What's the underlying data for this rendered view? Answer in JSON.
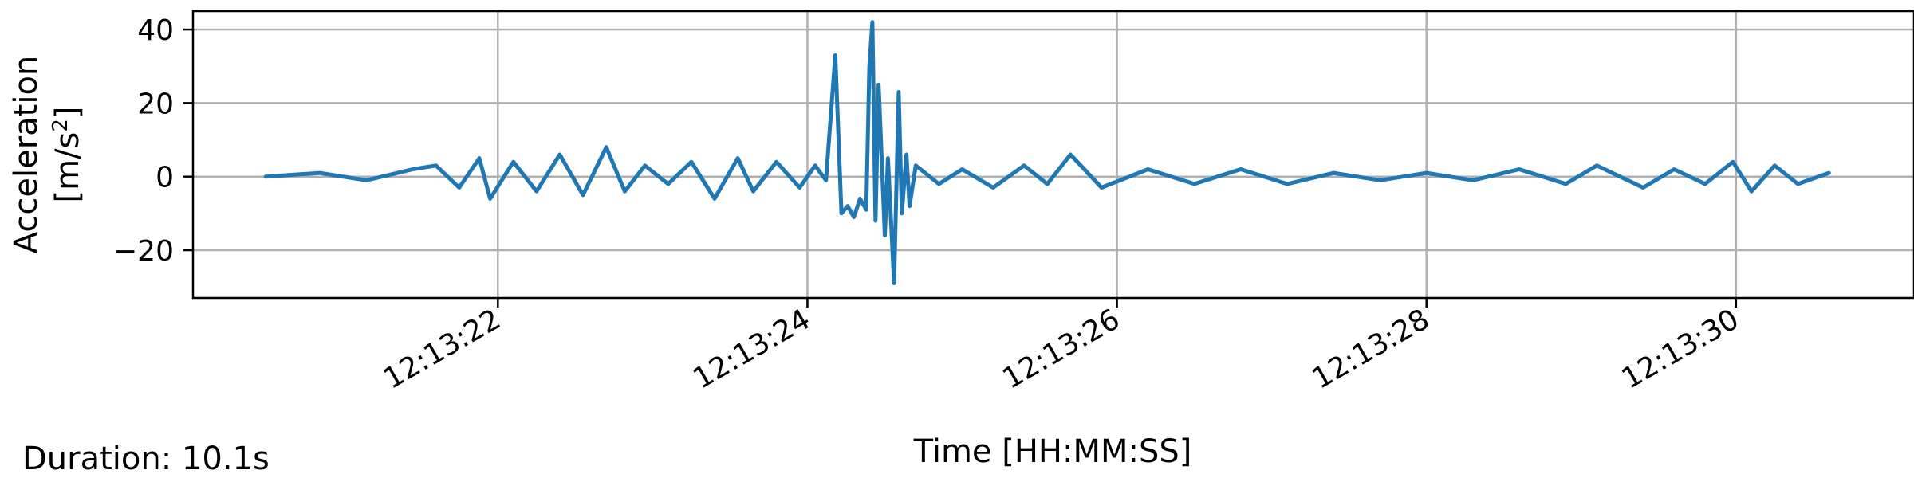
{
  "chart_data": {
    "type": "line",
    "xlabel": "Time [HH:MM:SS]",
    "ylabel_line1": "Acceleration",
    "ylabel_unit_prefix": "[m/s",
    "ylabel_unit_sup": "2",
    "ylabel_unit_suffix": "]",
    "xlim": [
      "12:13:20.030",
      "12:13:31.150"
    ],
    "ylim": [
      -33,
      45
    ],
    "grid": true,
    "x_ticks": [
      "12:13:22",
      "12:13:24",
      "12:13:26",
      "12:13:28",
      "12:13:30"
    ],
    "y_ticks": [
      {
        "value": 40,
        "label": "40"
      },
      {
        "value": 20,
        "label": "20"
      },
      {
        "value": 0,
        "label": "0"
      },
      {
        "value": -20,
        "label": "−20"
      }
    ],
    "series": [
      {
        "color": "#1f77b4",
        "x": [
          "12:13:20.500",
          "12:13:20.850",
          "12:13:21.150",
          "12:13:21.450",
          "12:13:21.600",
          "12:13:21.750",
          "12:13:21.880",
          "12:13:21.950",
          "12:13:22.100",
          "12:13:22.250",
          "12:13:22.400",
          "12:13:22.550",
          "12:13:22.700",
          "12:13:22.820",
          "12:13:22.950",
          "12:13:23.100",
          "12:13:23.250",
          "12:13:23.400",
          "12:13:23.550",
          "12:13:23.650",
          "12:13:23.800",
          "12:13:23.950",
          "12:13:24.050",
          "12:13:24.120",
          "12:13:24.180",
          "12:13:24.220",
          "12:13:24.260",
          "12:13:24.300",
          "12:13:24.340",
          "12:13:24.380",
          "12:13:24.400",
          "12:13:24.420",
          "12:13:24.440",
          "12:13:24.460",
          "12:13:24.500",
          "12:13:24.520",
          "12:13:24.560",
          "12:13:24.590",
          "12:13:24.610",
          "12:13:24.640",
          "12:13:24.660",
          "12:13:24.700",
          "12:13:24.850",
          "12:13:25.000",
          "12:13:25.200",
          "12:13:25.400",
          "12:13:25.550",
          "12:13:25.700",
          "12:13:25.900",
          "12:13:26.200",
          "12:13:26.500",
          "12:13:26.800",
          "12:13:27.100",
          "12:13:27.400",
          "12:13:27.700",
          "12:13:28.000",
          "12:13:28.300",
          "12:13:28.600",
          "12:13:28.900",
          "12:13:29.100",
          "12:13:29.400",
          "12:13:29.600",
          "12:13:29.800",
          "12:13:29.980",
          "12:13:30.100",
          "12:13:30.250",
          "12:13:30.400",
          "12:13:30.600"
        ],
        "y": [
          0,
          1,
          -1,
          2,
          3,
          -3,
          5,
          -6,
          4,
          -4,
          6,
          -5,
          8,
          -4,
          3,
          -2,
          4,
          -6,
          5,
          -4,
          4,
          -3,
          3,
          -1,
          33,
          -10,
          -8,
          -11,
          -6,
          -9,
          30,
          42,
          -12,
          25,
          -16,
          5,
          -29,
          23,
          -10,
          6,
          -8,
          3,
          -2,
          2,
          -3,
          3,
          -2,
          6,
          -3,
          2,
          -2,
          2,
          -2,
          1,
          -1,
          1,
          -1,
          2,
          -2,
          3,
          -3,
          2,
          -2,
          4,
          -4,
          3,
          -2,
          1
        ]
      }
    ]
  },
  "footer": {
    "duration": "Duration: 10.1s"
  }
}
